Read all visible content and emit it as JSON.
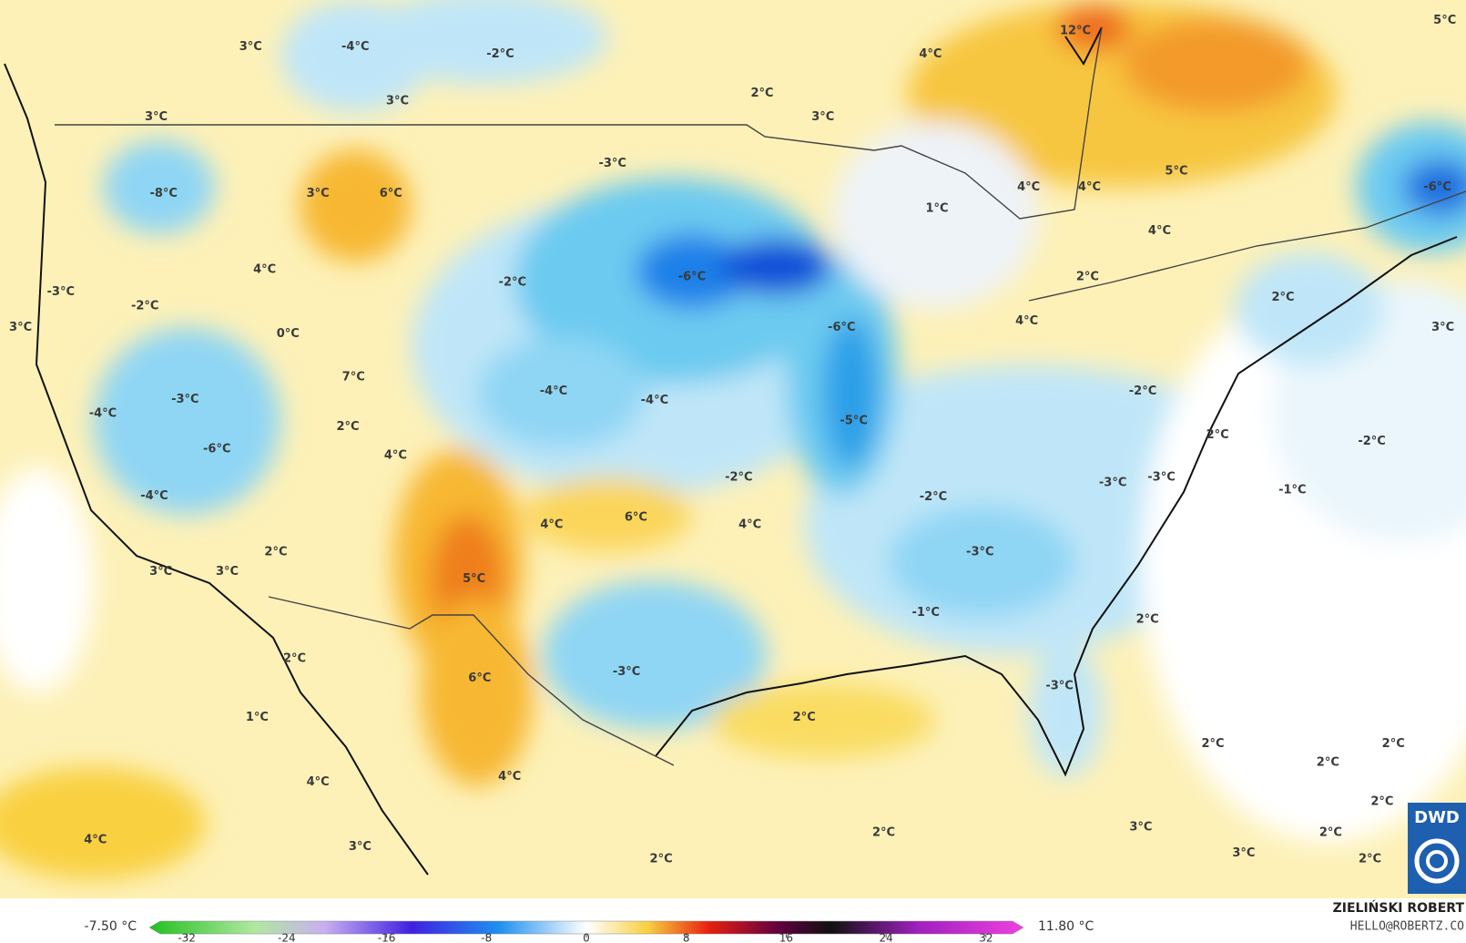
{
  "map_labels": [
    "3°C",
    "-4°C",
    "-2°C",
    "3°C",
    "3°C",
    "12°C",
    "4°C",
    "5°C",
    "2°C",
    "3°C",
    "-3°C",
    "-8°C",
    "3°C",
    "6°C",
    "5°C",
    "4°C",
    "4°C",
    "-6°C",
    "1°C",
    "4°C",
    "4°C",
    "-2°C",
    "-6°C",
    "2°C",
    "-3°C",
    "-2°C",
    "2°C",
    "-6°C",
    "4°C",
    "3°C",
    "0°C",
    "3°C",
    "7°C",
    "-4°C",
    "-4°C",
    "-2°C",
    "-3°C",
    "-4°C",
    "2°C",
    "-5°C",
    "2°C",
    "-2°C",
    "-6°C",
    "4°C",
    "-2°C",
    "-3°C",
    "-3°C",
    "-1°C",
    "-4°C",
    "-2°C",
    "4°C",
    "6°C",
    "4°C",
    "2°C",
    "-3°C",
    "3°C",
    "3°C",
    "5°C",
    "-1°C",
    "2°C",
    "2°C",
    "-3°C",
    "6°C",
    "-3°C",
    "2°C",
    "1°C",
    "2°C",
    "2°C",
    "2°C",
    "4°C",
    "4°C",
    "2°C",
    "2°C",
    "3°C",
    "2°C",
    "4°C",
    "3°C",
    "3°C",
    "2°C",
    "2°C"
  ],
  "colorbar": {
    "min_label": "-7.50 °C",
    "max_label": "11.80 °C",
    "lim": [
      -35,
      35
    ],
    "ticks": [
      -32,
      -24,
      -16,
      -8,
      0,
      8,
      16,
      24,
      32
    ]
  },
  "credit": {
    "name": "ZIELIŃSKI ROBERT",
    "email": "HELLO@ROBERTZ.CO"
  },
  "logo": "DWD"
}
